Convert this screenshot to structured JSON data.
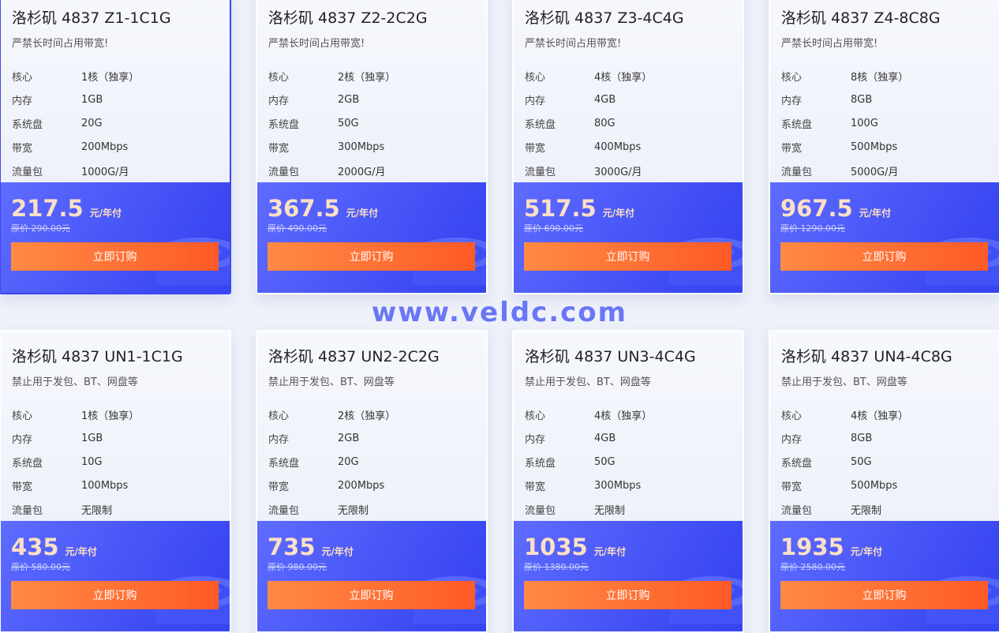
{
  "accent": "#4451f5",
  "button_color": "#ff6a30",
  "watermark": "www.veldc.com",
  "spec_labels": [
    "核心",
    "内存",
    "系统盘",
    "带宽",
    "流量包"
  ],
  "buy_label": "立即订购",
  "unit": "元/年付",
  "cards": [
    {
      "title": "洛杉矶 4837 Z1-1C1G",
      "note": "严禁长时间占用带宽!",
      "specs": [
        "1核（独享）",
        "1GB",
        "20G",
        "200Mbps",
        "1000G/月"
      ],
      "price": "217.5",
      "orig": "原价 290.00元",
      "selected": true
    },
    {
      "title": "洛杉矶 4837 Z2-2C2G",
      "note": "严禁长时间占用带宽!",
      "specs": [
        "2核（独享）",
        "2GB",
        "50G",
        "300Mbps",
        "2000G/月"
      ],
      "price": "367.5",
      "orig": "原价 490.00元"
    },
    {
      "title": "洛杉矶 4837 Z3-4C4G",
      "note": "严禁长时间占用带宽!",
      "specs": [
        "4核（独享）",
        "4GB",
        "80G",
        "400Mbps",
        "3000G/月"
      ],
      "price": "517.5",
      "orig": "原价 690.00元"
    },
    {
      "title": "洛杉矶 4837 Z4-8C8G",
      "note": "严禁长时间占用带宽!",
      "specs": [
        "8核（独享）",
        "8GB",
        "100G",
        "500Mbps",
        "5000G/月"
      ],
      "price": "967.5",
      "orig": "原价 1290.00元"
    },
    {
      "title": "洛杉矶 4837 UN1-1C1G",
      "note": "禁止用于发包、BT、网盘等",
      "specs": [
        "1核（独享）",
        "1GB",
        "10G",
        "100Mbps",
        "无限制"
      ],
      "price": "435",
      "orig": "原价 580.00元"
    },
    {
      "title": "洛杉矶 4837 UN2-2C2G",
      "note": "禁止用于发包、BT、网盘等",
      "specs": [
        "2核（独享）",
        "2GB",
        "20G",
        "200Mbps",
        "无限制"
      ],
      "price": "735",
      "orig": "原价 980.00元"
    },
    {
      "title": "洛杉矶 4837 UN3-4C4G",
      "note": "禁止用于发包、BT、网盘等",
      "specs": [
        "4核（独享）",
        "4GB",
        "50G",
        "300Mbps",
        "无限制"
      ],
      "price": "1035",
      "orig": "原价 1380.00元"
    },
    {
      "title": "洛杉矶 4837 UN4-4C8G",
      "note": "禁止用于发包、BT、网盘等",
      "specs": [
        "4核（独享）",
        "8GB",
        "50G",
        "500Mbps",
        "无限制"
      ],
      "price": "1935",
      "orig": "原价 2580.00元"
    }
  ]
}
